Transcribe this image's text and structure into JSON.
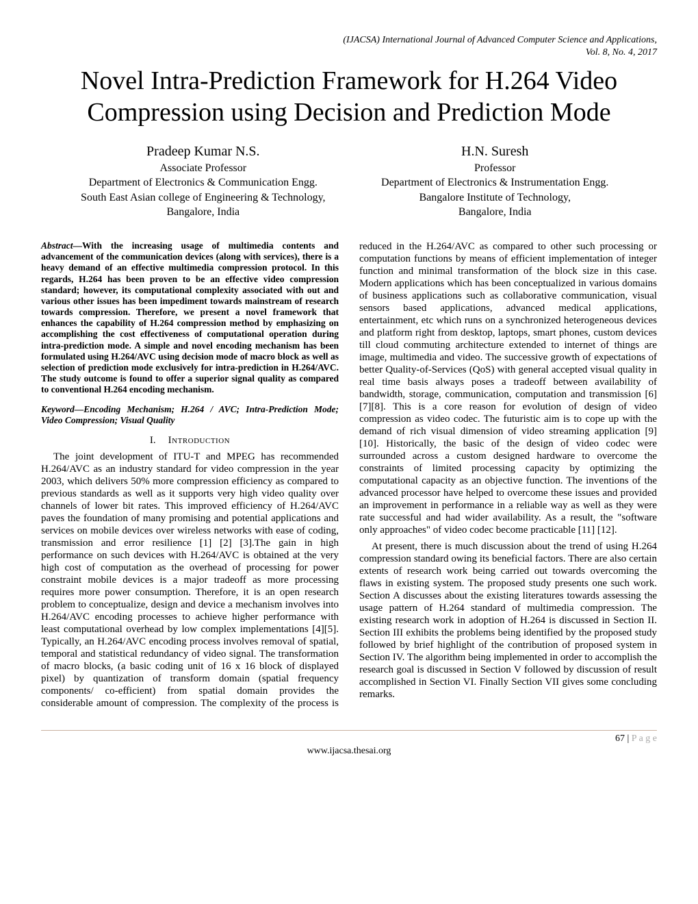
{
  "journal": {
    "name": "(IJACSA) International Journal of Advanced Computer Science and Applications,",
    "issue": "Vol. 8, No. 4, 2017"
  },
  "title": "Novel Intra-Prediction Framework for H.264 Video Compression using Decision and Prediction Mode",
  "authors": [
    {
      "name": "Pradeep Kumar N.S.",
      "role": "Associate Professor",
      "dept": "Department of Electronics & Communication Engg.",
      "inst": "South East Asian college of Engineering & Technology,",
      "loc": "Bangalore, India"
    },
    {
      "name": "H.N. Suresh",
      "role": "Professor",
      "dept": "Department of Electronics & Instrumentation Engg.",
      "inst": "Bangalore Institute of Technology,",
      "loc": "Bangalore, India"
    }
  ],
  "abstract_label": "Abstract—",
  "abstract": "With the increasing usage of multimedia contents and advancement of the communication devices (along with services), there is a heavy demand of an effective multimedia compression protocol. In this regards, H.264 has been proven to be an effective video compression standard; however, its computational complexity associated with out and various other issues has been impediment towards mainstream of research towards compression. Therefore, we present a novel framework that enhances the capability of H.264 compression method by emphasizing on accomplishing the cost effectiveness of computational operation during intra-prediction mode. A simple and novel encoding mechanism has been formulated using H.264/AVC using decision mode of macro block as well as selection of prediction mode exclusively for intra-prediction in H.264/AVC. The study outcome is found to offer a superior signal quality as compared to conventional H.264 encoding mechanism.",
  "keyword_label": "Keyword—",
  "keywords": "Encoding Mechanism; H.264 / AVC; Intra-Prediction Mode; Video Compression; Visual Quality",
  "section1": {
    "num": "I.",
    "title": "Introduction"
  },
  "para1": "The joint development of ITU-T and MPEG has recommended H.264/AVC as an industry standard for video compression in the year 2003, which delivers 50% more compression efficiency as compared to previous standards as well as it supports very high video quality over channels of lower bit rates. This improved efficiency of H.264/AVC paves the foundation of many promising and potential applications and services on mobile devices over wireless networks with ease of coding, transmission and error resilience [1] [2] [3].The gain in high performance on such devices with H.264/AVC is obtained at the very high cost of computation as the overhead of processing for power constraint mobile devices is a major tradeoff as more processing requires more power consumption. Therefore, it is an open research problem to conceptualize, design and device a mechanism involves into H.264/AVC encoding processes to achieve higher performance with least computational overhead by low complex implementations [4][5]. Typically, an H.264/AVC encoding process involves removal of spatial, temporal and statistical redundancy of video signal. The transformation of macro blocks, (a basic coding unit of 16 x 16 block of displayed pixel) by quantization of transform domain (spatial frequency components/ co-efficient) from spatial domain provides the considerable amount of compression. The complexity of the process is reduced in the H.264/AVC as compared to other such processing or computation functions by means of efficient implementation of integer function and minimal transformation of the block size in this case. Modern applications which has been conceptualized in various domains of business applications such as collaborative communication, visual sensors based applications, advanced medical applications, entertainment, etc which runs on a synchronized heterogeneous devices and platform right from desktop, laptops, smart phones, custom devices till cloud commuting architecture extended to internet of things are image, multimedia and video. The successive growth of expectations of better Quality-of-Services (QoS) with general accepted visual quality in real time basis always poses a tradeoff between availability of bandwidth, storage, communication, computation and transmission [6][7][8]. This is a core reason for evolution of design of video compression as video codec. The futuristic aim is to cope up with the demand of rich visual dimension of video streaming application [9] [10]. Historically, the basic of the design of video codec were surrounded across a custom designed hardware to overcome the constraints of limited processing capacity by optimizing the computational capacity as an objective function. The inventions of the advanced processor have helped to overcome these issues and provided an improvement in performance in a reliable way as well as they were rate successful and had wider availability. As a result, the \"software only approaches\" of video codec become practicable [11] [12].",
  "para2": "At present, there is much discussion about the trend of using H.264 compression standard owing its beneficial factors. There are also certain extents of research work being carried out towards overcoming the flaws in existing system. The proposed study presents one such work. Section A discusses about the existing literatures towards assessing the usage pattern of H.264 standard of multimedia compression. The existing research work in adoption of H.264 is discussed in Section II. Section III exhibits the problems being identified by the proposed study followed by brief highlight of the contribution of proposed system in Section IV. The algorithm being implemented in order to accomplish the research goal is discussed in Section V followed by discussion of result accomplished in Section VI. Finally Section VII gives some concluding remarks.",
  "footer": {
    "page_num": "67 | ",
    "page_word": "P a g e",
    "url": "www.ijacsa.thesai.org"
  }
}
